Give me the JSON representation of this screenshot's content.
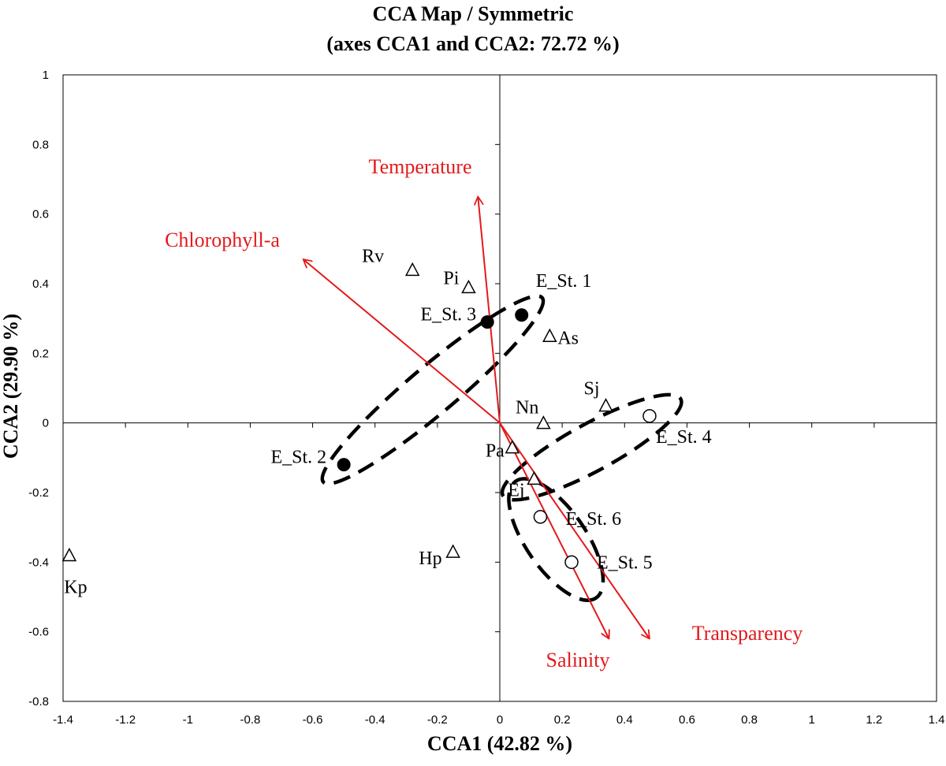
{
  "chart_data": {
    "type": "scatter",
    "title": "CCA Map / Symmetric",
    "subtitle": "(axes CCA1 and CCA2: 72.72 %)",
    "xlabel": "CCA1 (42.82 %)",
    "ylabel": "CCA2 (29.90 %)",
    "xlim": [
      -1.4,
      1.4
    ],
    "ylim": [
      -0.8,
      1
    ],
    "xticks": [
      -1.4,
      -1.2,
      -1,
      -0.8,
      -0.6,
      -0.4,
      -0.2,
      0,
      0.2,
      0.4,
      0.6,
      0.8,
      1,
      1.2,
      1.4
    ],
    "yticks": [
      -0.8,
      -0.6,
      -0.4,
      -0.2,
      0,
      0.2,
      0.4,
      0.6,
      0.8,
      1
    ],
    "grid": false,
    "species": [
      {
        "label": "Rv",
        "x": -0.28,
        "y": 0.44
      },
      {
        "label": "Pi",
        "x": -0.1,
        "y": 0.39
      },
      {
        "label": "As",
        "x": 0.16,
        "y": 0.25
      },
      {
        "label": "Sj",
        "x": 0.34,
        "y": 0.05
      },
      {
        "label": "Nn",
        "x": 0.14,
        "y": 0.0
      },
      {
        "label": "Pa",
        "x": 0.04,
        "y": -0.07
      },
      {
        "label": "Ej",
        "x": 0.11,
        "y": -0.16
      },
      {
        "label": "Hp",
        "x": -0.15,
        "y": -0.37
      },
      {
        "label": "Kp",
        "x": -1.38,
        "y": -0.38
      }
    ],
    "sites_filled": [
      {
        "label": "E_St. 1",
        "x": 0.07,
        "y": 0.31
      },
      {
        "label": "E_St. 3",
        "x": -0.04,
        "y": 0.29
      },
      {
        "label": "E_St. 2",
        "x": -0.5,
        "y": -0.12
      }
    ],
    "sites_open": [
      {
        "label": "E_St. 4",
        "x": 0.48,
        "y": 0.02
      },
      {
        "label": "E_St. 6",
        "x": 0.13,
        "y": -0.27
      },
      {
        "label": "E_St. 5",
        "x": 0.23,
        "y": -0.4
      }
    ],
    "vectors": [
      {
        "label": "Temperature",
        "x": -0.07,
        "y": 0.65
      },
      {
        "label": "Chlorophyll-a",
        "x": -0.63,
        "y": 0.47
      },
      {
        "label": "Salinity",
        "x": 0.35,
        "y": -0.62
      },
      {
        "label": "Transparency",
        "x": 0.48,
        "y": -0.62
      }
    ],
    "vector_color": "#e31a1c"
  }
}
